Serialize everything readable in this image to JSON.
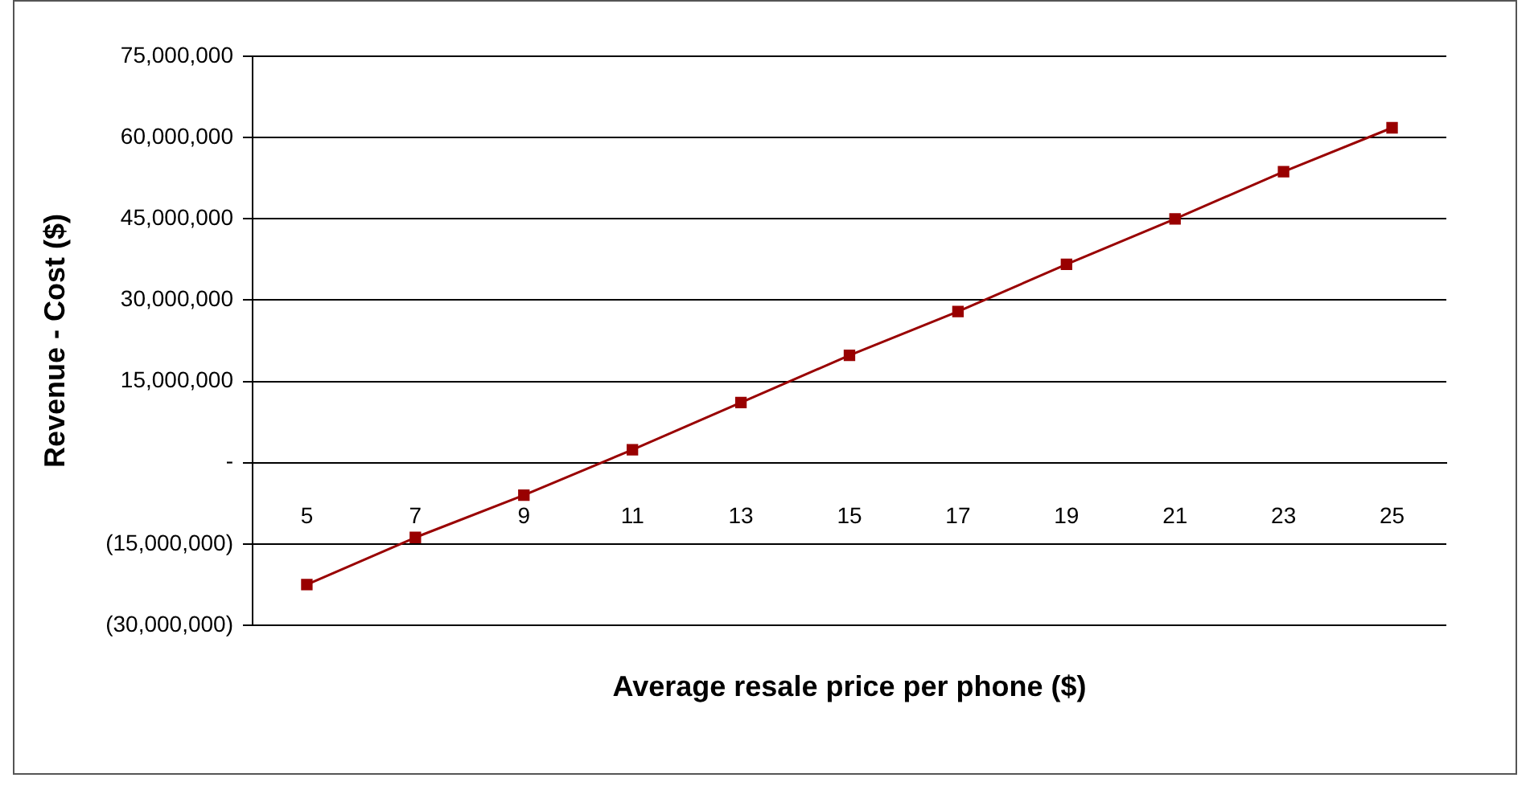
{
  "chart_data": {
    "type": "line",
    "xlabel": "Average resale price per phone ($)",
    "ylabel": "Revenue - Cost ($)",
    "categories": [
      "5",
      "7",
      "9",
      "11",
      "13",
      "15",
      "17",
      "19",
      "21",
      "23",
      "25"
    ],
    "series": [
      {
        "color": "#990000",
        "values": [
          -22500000,
          -13800000,
          -6000000,
          2400000,
          11100000,
          19800000,
          27900000,
          36600000,
          45000000,
          53700000,
          61800000
        ]
      }
    ],
    "ylim": [
      -30000000,
      75000000
    ],
    "yticks": [
      {
        "value": -30000000,
        "label": "(30,000,000)"
      },
      {
        "value": -15000000,
        "label": "(15,000,000)"
      },
      {
        "value": 0,
        "label": "-"
      },
      {
        "value": 15000000,
        "label": "15,000,000"
      },
      {
        "value": 30000000,
        "label": "30,000,000"
      },
      {
        "value": 45000000,
        "label": "45,000,000"
      },
      {
        "value": 60000000,
        "label": "60,000,000"
      },
      {
        "value": 75000000,
        "label": "75,000,000"
      }
    ],
    "grid": "y",
    "legend": false,
    "marker": "square",
    "line_style": "solid"
  }
}
